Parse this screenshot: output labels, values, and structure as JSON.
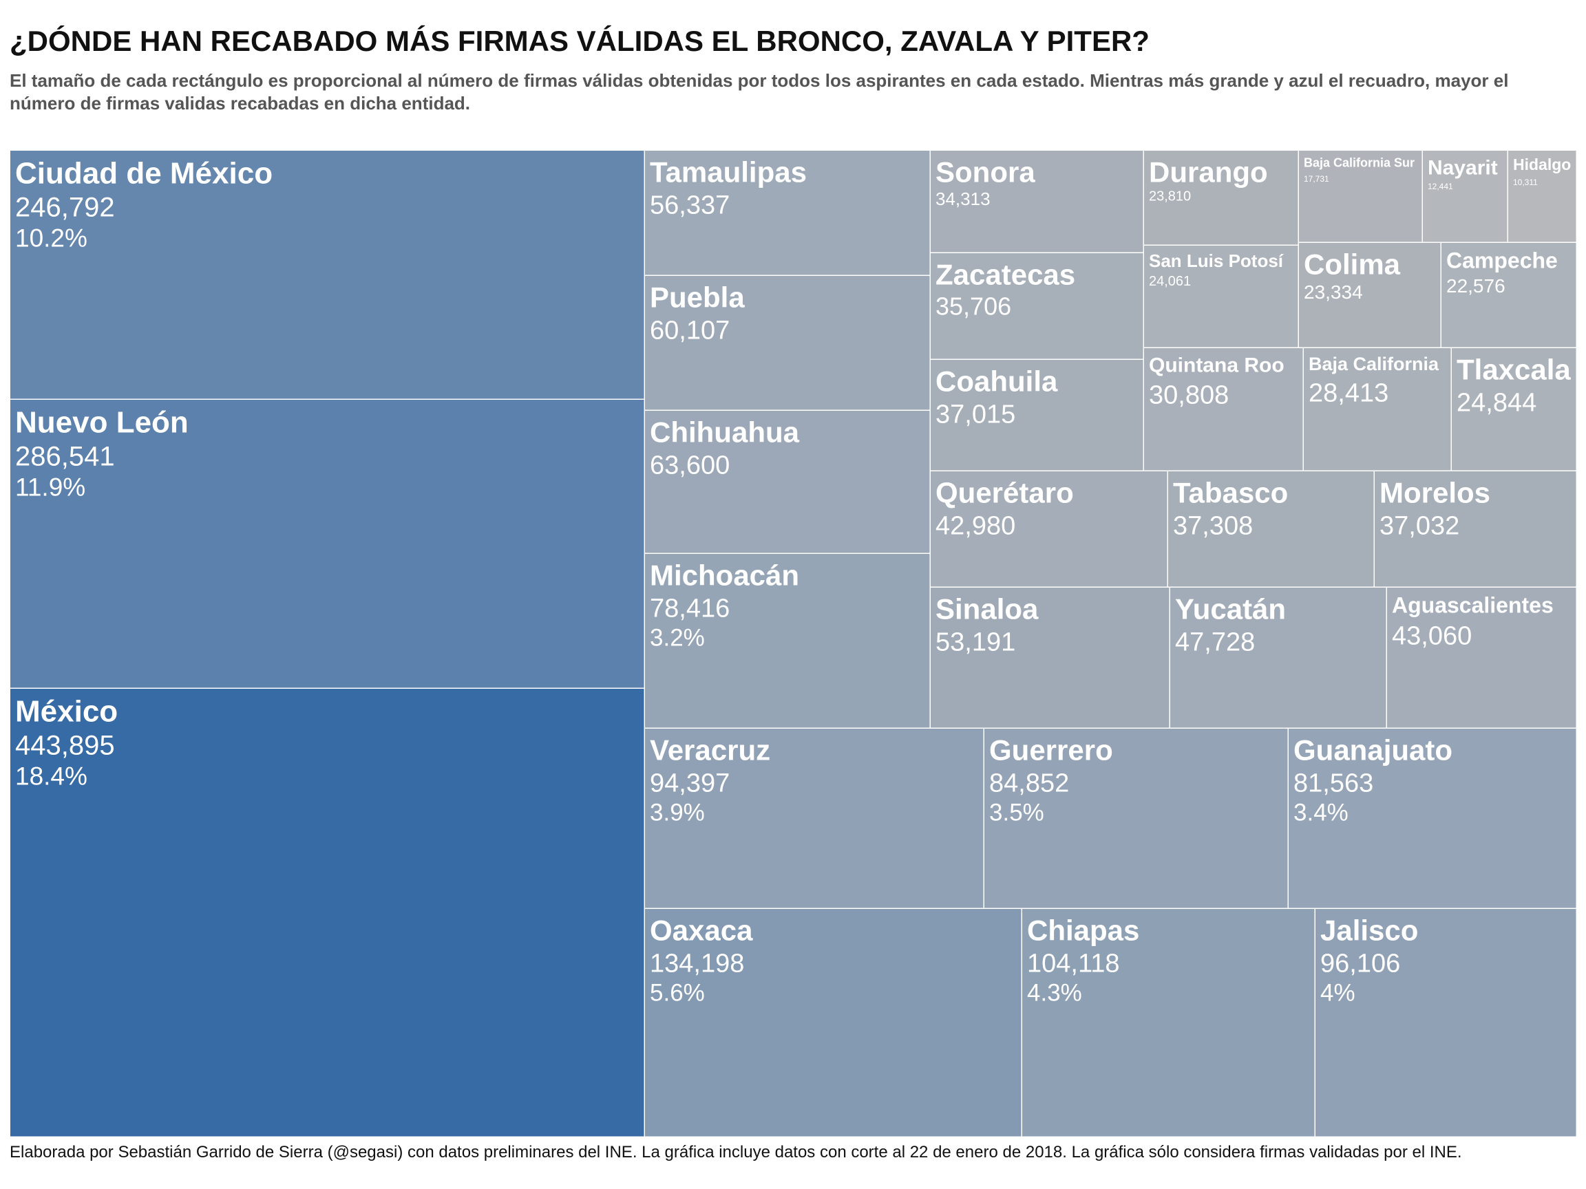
{
  "title": "¿DÓNDE HAN RECABADO MÁS FIRMAS VÁLIDAS EL BRONCO, ZAVALA Y PITER?",
  "subtitle": "El tamaño de cada rectángulo es proporcional al número de firmas válidas obtenidas por todos los aspirantes en cada estado. Mientras más grande y azul el recuadro, mayor el número de firmas validas recabadas en dicha entidad.",
  "caption": "Elaborada por Sebastián Garrido de Sierra (@segasi) con datos preliminares del INE. La gráfica incluye datos con corte al 22 de enero de 2018. La gráfica sólo considera firmas validadas por el INE.",
  "colors": {
    "low": "#b6b8bb",
    "high": "#376ba6",
    "border": "#ffffff",
    "label": "#ffffff"
  },
  "chart_data": {
    "type": "treemap",
    "value_label": "firmas válidas",
    "items": [
      {
        "name": "México",
        "value": "443,895",
        "pct": "18.4%"
      },
      {
        "name": "Nuevo León",
        "value": "286,541",
        "pct": "11.9%"
      },
      {
        "name": "Ciudad de México",
        "value": "246,792",
        "pct": "10.2%"
      },
      {
        "name": "Oaxaca",
        "value": "134,198",
        "pct": "5.6%"
      },
      {
        "name": "Chiapas",
        "value": "104,118",
        "pct": "4.3%"
      },
      {
        "name": "Jalisco",
        "value": "96,106",
        "pct": "4%"
      },
      {
        "name": "Veracruz",
        "value": "94,397",
        "pct": "3.9%"
      },
      {
        "name": "Guerrero",
        "value": "84,852",
        "pct": "3.5%"
      },
      {
        "name": "Guanajuato",
        "value": "81,563",
        "pct": "3.4%"
      },
      {
        "name": "Michoacán",
        "value": "78,416",
        "pct": "3.2%"
      },
      {
        "name": "Chihuahua",
        "value": "63,600",
        "pct": ""
      },
      {
        "name": "Puebla",
        "value": "60,107",
        "pct": ""
      },
      {
        "name": "Tamaulipas",
        "value": "56,337",
        "pct": ""
      },
      {
        "name": "Sinaloa",
        "value": "53,191",
        "pct": ""
      },
      {
        "name": "Yucatán",
        "value": "47,728",
        "pct": ""
      },
      {
        "name": "Aguascalientes",
        "value": "43,060",
        "pct": ""
      },
      {
        "name": "Querétaro",
        "value": "42,980",
        "pct": ""
      },
      {
        "name": "Tabasco",
        "value": "37,308",
        "pct": ""
      },
      {
        "name": "Morelos",
        "value": "37,032",
        "pct": ""
      },
      {
        "name": "Coahuila",
        "value": "37,015",
        "pct": ""
      },
      {
        "name": "Zacatecas",
        "value": "35,706",
        "pct": ""
      },
      {
        "name": "Sonora",
        "value": "34,313",
        "pct": ""
      },
      {
        "name": "Quintana Roo",
        "value": "30,808",
        "pct": ""
      },
      {
        "name": "Baja California",
        "value": "28,413",
        "pct": ""
      },
      {
        "name": "Tlaxcala",
        "value": "24,844",
        "pct": ""
      },
      {
        "name": "San Luis Potosí",
        "value": "24,061",
        "pct": ""
      },
      {
        "name": "Durango",
        "value": "23,810",
        "pct": ""
      },
      {
        "name": "Colima",
        "value": "23,334",
        "pct": ""
      },
      {
        "name": "Campeche",
        "value": "22,576",
        "pct": ""
      },
      {
        "name": "Baja California Sur",
        "value": "17,731",
        "pct": ""
      },
      {
        "name": "Nayarit",
        "value": "12,441",
        "pct": ""
      },
      {
        "name": "Hidalgo",
        "value": "10,311",
        "pct": ""
      }
    ]
  }
}
